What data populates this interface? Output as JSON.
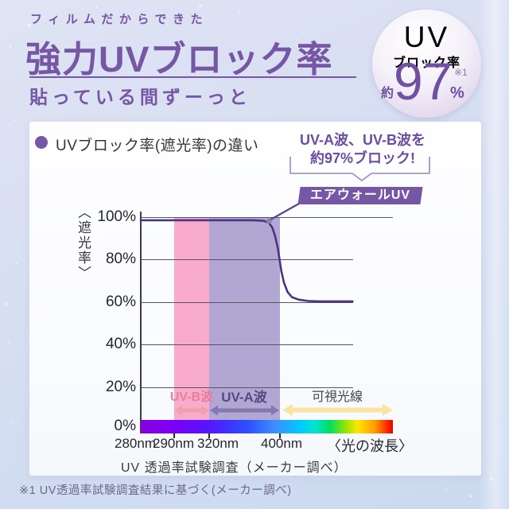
{
  "header": {
    "tagline": "フィルムだからできた",
    "title": "強力UVブロック率",
    "subtitle": "貼っている間ずーっと"
  },
  "badge": {
    "uv": "UV",
    "label": "ブロック率",
    "approx": "約",
    "value": "97",
    "percent": "%",
    "note_ref": "※1"
  },
  "panel": {
    "heading": "UVブロック率(遮光率)の違い",
    "callout": {
      "line1": "UV-A波、UV-B波を",
      "line2": "約97%ブロック!"
    },
    "product_label": "エアウォールUV"
  },
  "chart_data": {
    "type": "line",
    "title": "UVブロック率(遮光率)の違い",
    "ylabel": "〈遮光率〉",
    "xlabel": "〈光の波長〉",
    "ylim": [
      0,
      100
    ],
    "grid": true,
    "y_ticks": [
      "100%",
      "80%",
      "60%",
      "40%",
      "20%",
      "0%"
    ],
    "x_ticks": [
      "280nm",
      "290nm",
      "320nm",
      "400nm"
    ],
    "x_tick_nm": [
      280,
      290,
      320,
      400
    ],
    "x_axis_note": "non-linear wavelength scale",
    "series": [
      {
        "name": "エアウォールUV",
        "points": [
          [
            280,
            98.7
          ],
          [
            370,
            98.7
          ],
          [
            382,
            98.4
          ],
          [
            388,
            97.5
          ],
          [
            392,
            95
          ],
          [
            395,
            91
          ],
          [
            398,
            85.5
          ],
          [
            400,
            80
          ],
          [
            402,
            74.5
          ],
          [
            405,
            69
          ],
          [
            409,
            64.5
          ],
          [
            414,
            62
          ],
          [
            422,
            60.8
          ],
          [
            432,
            60.2
          ],
          [
            445,
            60
          ],
          [
            483,
            60
          ]
        ]
      }
    ],
    "annotation": "UV-A波、UV-B波を約97%ブロック!",
    "annotation_point": [
      388,
      98.2
    ],
    "bands": [
      {
        "label": "UV-B波",
        "from_nm": 290,
        "to_nm": 320,
        "color": "#F8ABCA"
      },
      {
        "label": "UV-A波",
        "from_nm": 320,
        "to_nm": 400,
        "color": "#B2A7D3"
      },
      {
        "label": "可視光線",
        "from_nm": 400,
        "to_nm": null,
        "color": "spectrum"
      }
    ],
    "caption": "UV 透過率試験調査（メーカー調べ）"
  },
  "footnote": "※1 UV透過率試験調査結果に基づく(メーカー調べ)",
  "colors": {
    "brand_purple": "#7557A5",
    "background": "#D8DFF1",
    "card": "#FCFDFF",
    "curve": "#4A3488",
    "uvb_band": "#F8ABCA",
    "uva_band": "#B2A7D3",
    "uvb_arrow": "#EFA0AE",
    "uva_arrow": "#8478B0",
    "visible_arrow": "#F8E3A4",
    "uvb_label_text": "#E87E9B",
    "uva_label_text": "#554A80",
    "dark_text": "#26262E"
  }
}
